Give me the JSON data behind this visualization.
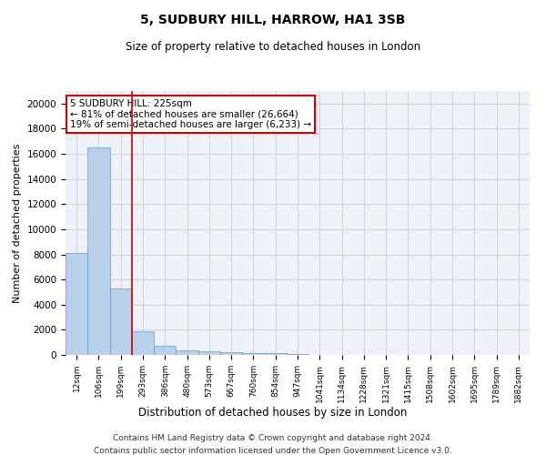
{
  "title": "5, SUDBURY HILL, HARROW, HA1 3SB",
  "subtitle": "Size of property relative to detached houses in London",
  "xlabel": "Distribution of detached houses by size in London",
  "ylabel": "Number of detached properties",
  "bar_color": "#b8d0e8",
  "bar_edge_color": "#6699cc",
  "categories": [
    "12sqm",
    "106sqm",
    "199sqm",
    "293sqm",
    "386sqm",
    "480sqm",
    "573sqm",
    "667sqm",
    "760sqm",
    "854sqm",
    "947sqm",
    "1041sqm",
    "1134sqm",
    "1228sqm",
    "1321sqm",
    "1415sqm",
    "1508sqm",
    "1602sqm",
    "1695sqm",
    "1789sqm",
    "1882sqm"
  ],
  "values": [
    8100,
    16500,
    5300,
    1850,
    700,
    350,
    270,
    210,
    180,
    120,
    80,
    0,
    0,
    0,
    0,
    0,
    0,
    0,
    0,
    0,
    0
  ],
  "ylim": [
    0,
    21000
  ],
  "yticks": [
    0,
    2000,
    4000,
    6000,
    8000,
    10000,
    12000,
    14000,
    16000,
    18000,
    20000
  ],
  "annotation_text": "5 SUDBURY HILL: 225sqm\n← 81% of detached houses are smaller (26,664)\n19% of semi-detached houses are larger (6,233) →",
  "vline_position": 2.5,
  "annotation_box_color": "#ffffff",
  "annotation_box_edge": "#cc0000",
  "grid_color": "#cccccc",
  "footnote_line1": "Contains HM Land Registry data © Crown copyright and database right 2024.",
  "footnote_line2": "Contains public sector information licensed under the Open Government Licence v3.0.",
  "bg_color": "#eef2f8"
}
